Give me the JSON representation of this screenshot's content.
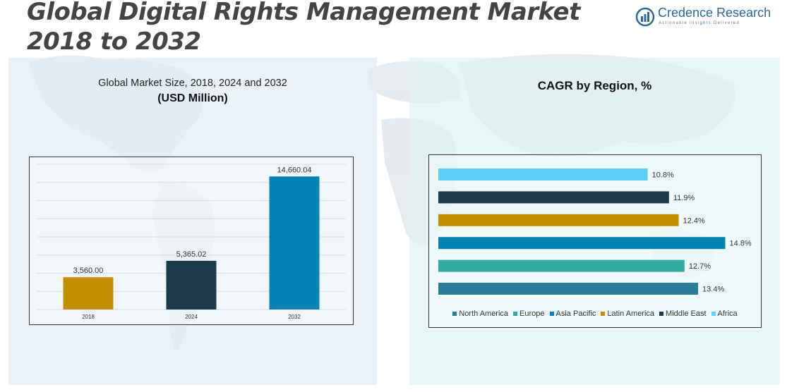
{
  "header": {
    "title": "Global Digital Rights Management Market 2018 to 2032",
    "logo_name": "Credence Research",
    "logo_tagline": "Actionable Insights Delivered"
  },
  "left_panel": {
    "subtitle": "Global Market Size, 2018, 2024 and 2032",
    "unit": "(USD Million)"
  },
  "right_panel": {
    "title": "CAGR by Region, %"
  },
  "colors": {
    "brand_blue": "#2e6a9c",
    "panel_left_bg": "#e2ecf4",
    "panel_right_bg": "#e0f2f2"
  },
  "chart_data": [
    {
      "type": "bar",
      "title": "Global Market Size, 2018, 2024 and 2032",
      "ylabel": "(USD Million)",
      "categories": [
        "2018",
        "2024",
        "2032"
      ],
      "values": [
        3560.0,
        5365.02,
        14660.04
      ],
      "value_labels": [
        "3,560.00",
        "5,365.02",
        "14,660.04"
      ],
      "colors": [
        "#c09000",
        "#1b3a4b",
        "#0583b4"
      ],
      "ylim": [
        0,
        16000
      ],
      "grid": true
    },
    {
      "type": "bar",
      "orientation": "horizontal",
      "title": "CAGR by Region, %",
      "categories": [
        "Africa",
        "Middle East",
        "Latin America",
        "Asia Pacific",
        "Europe",
        "North America"
      ],
      "values": [
        10.8,
        11.9,
        12.4,
        14.8,
        12.7,
        13.4
      ],
      "value_labels": [
        "10.8%",
        "11.9%",
        "12.4%",
        "14.8%",
        "12.7%",
        "13.4%"
      ],
      "colors": [
        "#5dcff6",
        "#1b3a4b",
        "#c09000",
        "#0583b4",
        "#34aaa4",
        "#2a7c9a"
      ],
      "xlim": [
        0,
        15
      ],
      "legend": {
        "placement": "bottom",
        "entries": [
          "North America",
          "Europe",
          "Asia Pacific",
          "Latin America",
          "Middle East",
          "Africa"
        ],
        "colors": [
          "#2a7c9a",
          "#34aaa4",
          "#0583b4",
          "#c09000",
          "#1b3a4b",
          "#5dcff6"
        ]
      }
    }
  ]
}
